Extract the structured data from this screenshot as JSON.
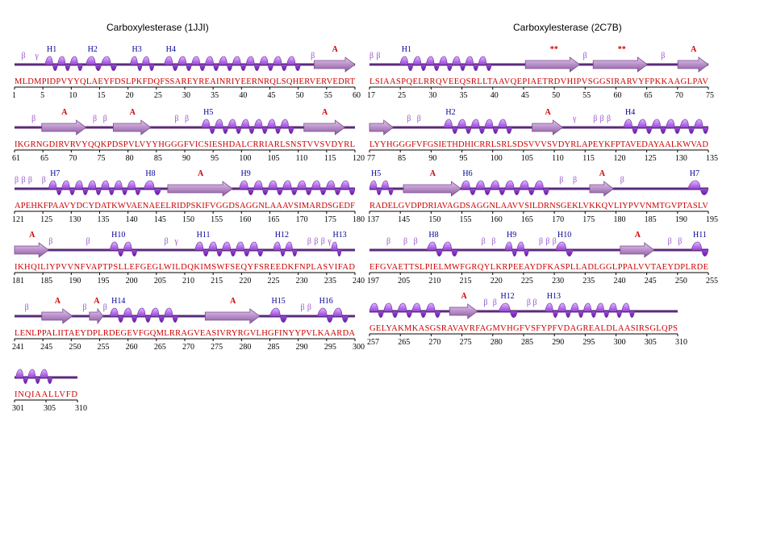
{
  "panels": [
    {
      "title": "Carboxylesterase (1JJI)",
      "rows": [
        {
          "seq": "MLDMPIDPVYYQLAEYFDSLPKFDQFSSAREYREAINRIYEERNRQLSQHERVERVEDRT",
          "ticks": [
            "1",
            "5",
            "10",
            "15",
            "20",
            "25",
            "30",
            "35",
            "40",
            "45",
            "50",
            "55",
            "60"
          ],
          "elements": [
            {
              "t": "b",
              "a": 0.02
            },
            {
              "t": "g",
              "a": 0.06
            },
            {
              "t": "H",
              "label": "H1",
              "a": 0.09,
              "b": 0.2
            },
            {
              "t": "H",
              "label": "H2",
              "a": 0.21,
              "b": 0.3
            },
            {
              "t": "H",
              "label": "H3",
              "a": 0.34,
              "b": 0.41
            },
            {
              "t": "H",
              "label": "H4",
              "a": 0.44,
              "b": 0.84
            },
            {
              "t": "b",
              "a": 0.87
            },
            {
              "t": "A",
              "a": 0.88,
              "b": 1.0,
              "label": "A"
            }
          ]
        },
        {
          "seq": "IKGRNGDIRVRVYQQKPDSPVLVYYHGGGFVICSIESHDALCRRIARLSNSTVVSVDYRL",
          "ticks": [
            "61",
            "65",
            "70",
            "75",
            "80",
            "85",
            "90",
            "95",
            "100",
            "105",
            "110",
            "115",
            "120"
          ],
          "elements": [
            {
              "t": "b",
              "a": 0.05
            },
            {
              "t": "A",
              "a": 0.08,
              "b": 0.21,
              "label": "A"
            },
            {
              "t": "b",
              "a": 0.23
            },
            {
              "t": "b",
              "a": 0.26
            },
            {
              "t": "A",
              "a": 0.29,
              "b": 0.4,
              "label": "A"
            },
            {
              "t": "b",
              "a": 0.47
            },
            {
              "t": "b",
              "a": 0.5
            },
            {
              "t": "H",
              "label": "H5",
              "a": 0.55,
              "b": 0.82
            },
            {
              "t": "A",
              "a": 0.85,
              "b": 0.97,
              "label": "A"
            }
          ]
        },
        {
          "seq": "APEHKFPAAVYDCYDATKWVAENAEELRIDPSKIFVGGDSAGGNLAAAVSIMARDSGEDF",
          "ticks": [
            "121",
            "125",
            "130",
            "135",
            "140",
            "145",
            "150",
            "155",
            "160",
            "165",
            "170",
            "175",
            "180"
          ],
          "elements": [
            {
              "t": "b",
              "a": 0.0
            },
            {
              "t": "b",
              "a": 0.02
            },
            {
              "t": "b",
              "a": 0.04
            },
            {
              "t": "b",
              "a": 0.08
            },
            {
              "t": "H",
              "label": "H7",
              "a": 0.1,
              "b": 0.37
            },
            {
              "t": "H",
              "label": "H8",
              "a": 0.38,
              "b": 0.43
            },
            {
              "t": "A",
              "a": 0.45,
              "b": 0.64,
              "label": "A"
            },
            {
              "t": "H",
              "label": "H9",
              "a": 0.66,
              "b": 1.0
            }
          ]
        },
        {
          "seq": "IKHQILIYPVVNFVAPTPSLLEFGEGLWILDQKIMSWFSEQYFSREEDKFNPLASVIFAD",
          "ticks": [
            "181",
            "185",
            "190",
            "195",
            "200",
            "205",
            "210",
            "215",
            "220",
            "225",
            "230",
            "235",
            "240"
          ],
          "elements": [
            {
              "t": "A",
              "a": 0.0,
              "b": 0.1,
              "label": "A"
            },
            {
              "t": "b",
              "a": 0.1
            },
            {
              "t": "b",
              "a": 0.21
            },
            {
              "t": "H",
              "label": "H10",
              "a": 0.28,
              "b": 0.36
            },
            {
              "t": "b",
              "a": 0.44
            },
            {
              "t": "g",
              "a": 0.47
            },
            {
              "t": "H",
              "label": "H11",
              "a": 0.53,
              "b": 0.73
            },
            {
              "t": "H",
              "label": "H12",
              "a": 0.76,
              "b": 0.83
            },
            {
              "t": "b",
              "a": 0.86
            },
            {
              "t": "b",
              "a": 0.88
            },
            {
              "t": "b",
              "a": 0.9
            },
            {
              "t": "g",
              "a": 0.92
            },
            {
              "t": "H",
              "label": "H13",
              "a": 0.93,
              "b": 0.96
            }
          ]
        },
        {
          "seq": "LENLPPALIITAEYDPLRDEGEVFGQMLRRAGVEASIVRYRGVLHGFINYYPVLKAARDA",
          "ticks": [
            "241",
            "245",
            "250",
            "255",
            "260",
            "265",
            "270",
            "275",
            "280",
            "285",
            "290",
            "295",
            "300"
          ],
          "elements": [
            {
              "t": "b",
              "a": 0.03
            },
            {
              "t": "A",
              "a": 0.08,
              "b": 0.17,
              "label": "A"
            },
            {
              "t": "b",
              "a": 0.2
            },
            {
              "t": "A",
              "a": 0.22,
              "b": 0.26,
              "label": "A"
            },
            {
              "t": "b",
              "a": 0.26
            },
            {
              "t": "H",
              "label": "H14",
              "a": 0.28,
              "b": 0.48
            },
            {
              "t": "A",
              "a": 0.56,
              "b": 0.72,
              "label": "A"
            },
            {
              "t": "H",
              "label": "H15",
              "a": 0.75,
              "b": 0.8
            },
            {
              "t": "b",
              "a": 0.84
            },
            {
              "t": "b",
              "a": 0.86
            },
            {
              "t": "H",
              "label": "H16",
              "a": 0.89,
              "b": 0.98
            }
          ]
        },
        {
          "seq": "INQIAALLVFD",
          "ticks": [
            "301",
            "305",
            "310"
          ],
          "elements": [
            {
              "t": "H",
              "label": "",
              "a": 0.02,
              "b": 0.6
            }
          ]
        }
      ]
    },
    {
      "title": "Carboxylesterase (2C7B)",
      "rows": [
        {
          "seq": "LSIAASPQELRRQVEEQSRLLTAAVQEPIAETRDVHIPVSGGSIRARVYFPKKAAGLPAV",
          "ticks": [
            "17",
            "25",
            "30",
            "35",
            "40",
            "45",
            "50",
            "55",
            "60",
            "65",
            "70",
            "75"
          ],
          "elements": [
            {
              "t": "b",
              "a": 0.0
            },
            {
              "t": "b",
              "a": 0.02
            },
            {
              "t": "H",
              "label": "H1",
              "a": 0.09,
              "b": 0.36
            },
            {
              "t": "A",
              "a": 0.46,
              "b": 0.62,
              "label": "**"
            },
            {
              "t": "b",
              "a": 0.63
            },
            {
              "t": "A",
              "a": 0.66,
              "b": 0.82,
              "label": "**"
            },
            {
              "t": "b",
              "a": 0.86
            },
            {
              "t": "A",
              "a": 0.91,
              "b": 1.0,
              "label": "A"
            }
          ]
        },
        {
          "seq": "LYYHGGGFVFGSIETHDHICRRLSRLSDSVVVSVDYRLAPEYKFPTAVEDAYAALKWVAD",
          "ticks": [
            "77",
            "85",
            "90",
            "95",
            "100",
            "105",
            "110",
            "115",
            "120",
            "125",
            "130",
            "135"
          ],
          "elements": [
            {
              "t": "A",
              "a": 0.0,
              "b": 0.07,
              "label": ""
            },
            {
              "t": "b",
              "a": 0.11
            },
            {
              "t": "b",
              "a": 0.14
            },
            {
              "t": "H",
              "label": "H2",
              "a": 0.22,
              "b": 0.42
            },
            {
              "t": "A",
              "a": 0.48,
              "b": 0.57,
              "label": "A"
            },
            {
              "t": "g",
              "a": 0.6
            },
            {
              "t": "b",
              "a": 0.66
            },
            {
              "t": "b",
              "a": 0.68
            },
            {
              "t": "b",
              "a": 0.7
            },
            {
              "t": "H",
              "label": "H4",
              "a": 0.75,
              "b": 1.0
            }
          ]
        },
        {
          "seq": "RADELGVDPDRIAVAGDSAGGNLAAVVSILDRNSGEKLVKKQVLIYPVVNMTGVPTASLV",
          "ticks": [
            "137",
            "145",
            "150",
            "155",
            "160",
            "165",
            "170",
            "175",
            "180",
            "185",
            "190",
            "195"
          ],
          "elements": [
            {
              "t": "H",
              "label": "H5",
              "a": 0.0,
              "b": 0.07
            },
            {
              "t": "A",
              "a": 0.1,
              "b": 0.27,
              "label": "A"
            },
            {
              "t": "H",
              "label": "H6",
              "a": 0.27,
              "b": 0.53
            },
            {
              "t": "b",
              "a": 0.56
            },
            {
              "t": "b",
              "a": 0.6
            },
            {
              "t": "A",
              "a": 0.65,
              "b": 0.72,
              "label": "A"
            },
            {
              "t": "b",
              "a": 0.74
            },
            {
              "t": "H",
              "label": "H7",
              "a": 0.94,
              "b": 1.0
            }
          ]
        },
        {
          "seq": "EFGVAETTSLPIELMWFGRQYLKRPEEAYDFKASPLLADLGGLPPALVVTAEYDPLRDE",
          "ticks": [
            "197",
            "205",
            "210",
            "215",
            "220",
            "225",
            "230",
            "235",
            "240",
            "245",
            "250",
            "255"
          ],
          "elements": [
            {
              "t": "b",
              "a": 0.05
            },
            {
              "t": "b",
              "a": 0.1
            },
            {
              "t": "b",
              "a": 0.13
            },
            {
              "t": "H",
              "label": "H8",
              "a": 0.17,
              "b": 0.26
            },
            {
              "t": "b",
              "a": 0.33
            },
            {
              "t": "b",
              "a": 0.36
            },
            {
              "t": "H",
              "label": "H9",
              "a": 0.4,
              "b": 0.47
            },
            {
              "t": "b",
              "a": 0.5
            },
            {
              "t": "b",
              "a": 0.52
            },
            {
              "t": "b",
              "a": 0.54
            },
            {
              "t": "H",
              "label": "H10",
              "a": 0.55,
              "b": 0.6
            },
            {
              "t": "A",
              "a": 0.74,
              "b": 0.84,
              "label": "A"
            },
            {
              "t": "b",
              "a": 0.88
            },
            {
              "t": "b",
              "a": 0.91
            },
            {
              "t": "H",
              "label": "H11",
              "a": 0.95,
              "b": 1.0
            }
          ]
        },
        {
          "seq": "GELYAKMKASGSRAVAVRFAGMVHGFVSFYPFVDAGREALDLAASIRSGLQPS",
          "ticks": [
            "257",
            "265",
            "270",
            "275",
            "280",
            "285",
            "290",
            "295",
            "300",
            "305",
            "310"
          ],
          "elements": [
            {
              "t": "H",
              "label": "",
              "a": 0.0,
              "b": 0.23
            },
            {
              "t": "A",
              "a": 0.26,
              "b": 0.35,
              "label": "A"
            },
            {
              "t": "b",
              "a": 0.37
            },
            {
              "t": "b",
              "a": 0.4
            },
            {
              "t": "H",
              "label": "H12",
              "a": 0.42,
              "b": 0.48
            },
            {
              "t": "b",
              "a": 0.51
            },
            {
              "t": "b",
              "a": 0.53
            },
            {
              "t": "H",
              "label": "H13",
              "a": 0.57,
              "b": 0.86
            }
          ]
        }
      ]
    }
  ]
}
